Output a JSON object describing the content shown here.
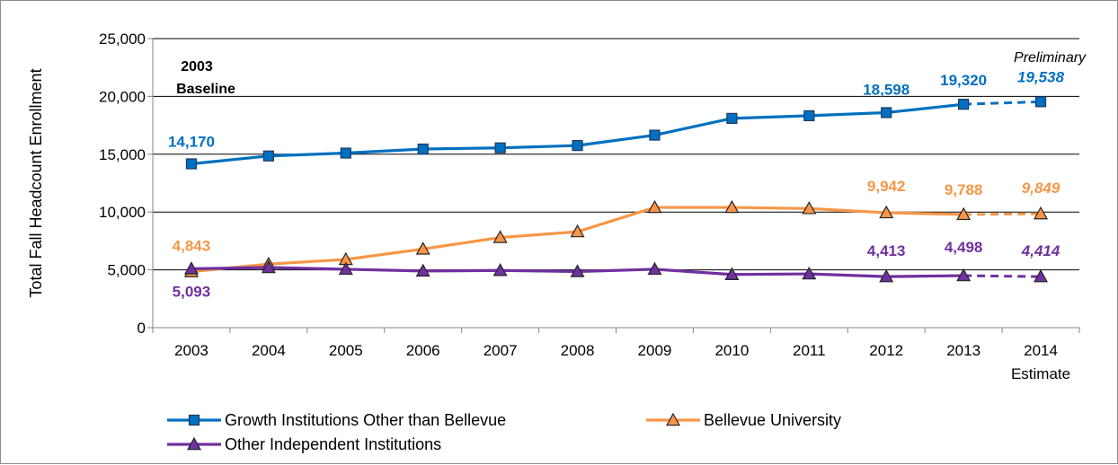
{
  "chart_data": {
    "type": "line",
    "ylabel": "Total Fall Headcount Enrollment",
    "xlabel": "",
    "ylim": [
      0,
      25000
    ],
    "yticks": [
      "0",
      "5,000",
      "10,000",
      "15,000",
      "20,000",
      "25,000"
    ],
    "yticks_values": [
      0,
      5000,
      10000,
      15000,
      20000,
      25000
    ],
    "grid": "horizontal",
    "legend_position": "bottom",
    "categories": [
      "2003",
      "2004",
      "2005",
      "2006",
      "2007",
      "2008",
      "2009",
      "2010",
      "2011",
      "2012",
      "2013",
      "2014"
    ],
    "last_category_sublabel": "Estimate",
    "projection_note": "Preliminary",
    "baseline_note_line1": "2003",
    "baseline_note_line2": "Baseline",
    "series": [
      {
        "name": "Growth Institutions Other than Bellevue",
        "color": "#0070C0",
        "marker": "square",
        "values": [
          14170,
          14850,
          15100,
          15450,
          15550,
          15750,
          16650,
          18100,
          18330,
          18598,
          19320,
          19538
        ],
        "labels": [
          {
            "index": 0,
            "text": "14,170"
          },
          {
            "index": 9,
            "text": "18,598"
          },
          {
            "index": 10,
            "text": "19,320"
          },
          {
            "index": 11,
            "text": "19,538"
          }
        ]
      },
      {
        "name": "Bellevue University",
        "color": "#F79646",
        "marker": "triangle",
        "values": [
          4843,
          5500,
          5900,
          6800,
          7800,
          8300,
          10400,
          10400,
          10300,
          9942,
          9788,
          9849
        ],
        "labels": [
          {
            "index": 0,
            "text": "4,843"
          },
          {
            "index": 9,
            "text": "9,942"
          },
          {
            "index": 10,
            "text": "9,788"
          },
          {
            "index": 11,
            "text": "9,849"
          }
        ]
      },
      {
        "name": "Other Independent Institutions",
        "color": "#7030A0",
        "marker": "triangle",
        "values": [
          5093,
          5200,
          5050,
          4900,
          4950,
          4850,
          5050,
          4600,
          4650,
          4413,
          4498,
          4414
        ],
        "labels": [
          {
            "index": 0,
            "text": "5,093"
          },
          {
            "index": 9,
            "text": "4,413"
          },
          {
            "index": 10,
            "text": "4,498"
          },
          {
            "index": 11,
            "text": "4,414"
          }
        ]
      }
    ]
  }
}
